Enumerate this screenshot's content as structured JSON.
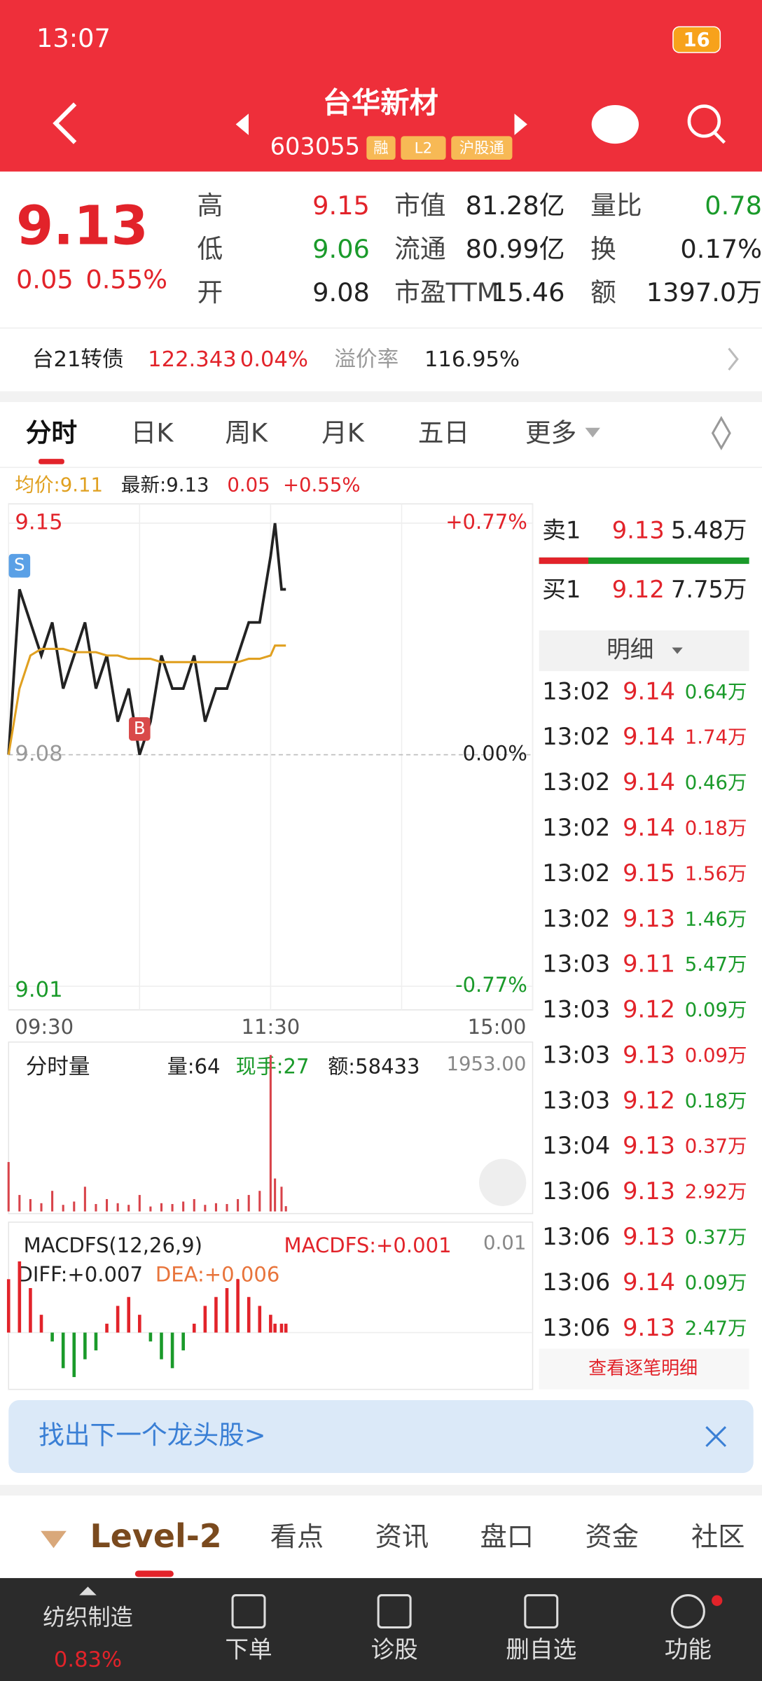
{
  "status_bar": {
    "time": "13:07",
    "battery": "16"
  },
  "header": {
    "title": "台华新材",
    "code": "603055",
    "tags": [
      "融",
      "L2",
      "沪股通"
    ]
  },
  "quote": {
    "price": "9.13",
    "change": "0.05",
    "change_pct": "0.55%",
    "stats": [
      [
        {
          "label": "高",
          "value": "9.15"
        },
        {
          "label": "市值",
          "value": "81.28亿"
        },
        {
          "label": "量比",
          "value": "0.78"
        }
      ],
      [
        {
          "label": "低",
          "value": "9.06"
        },
        {
          "label": "流通",
          "value": "80.99亿"
        },
        {
          "label": "换",
          "value": "0.17%"
        }
      ],
      [
        {
          "label": "开",
          "value": "9.08"
        },
        {
          "label": "市盈TTM",
          "value": "15.46"
        },
        {
          "label": "额",
          "value": "1397.0万"
        }
      ]
    ]
  },
  "bond": {
    "name": "台21转债",
    "price": "122.343",
    "pct": "0.04%",
    "premium_label": "溢价率",
    "premium": "116.95%"
  },
  "tabs": [
    "分时",
    "日K",
    "周K",
    "月K",
    "五日",
    "更多"
  ],
  "chart_info": {
    "avg": "均价:9.11",
    "latest": "最新:9.13",
    "change": "0.05",
    "pct": "+0.55%"
  },
  "chart_data": {
    "type": "line",
    "x": [
      0,
      5,
      10,
      15,
      20,
      25,
      30,
      35,
      40,
      45,
      50,
      55,
      60,
      65,
      70,
      75,
      80,
      85,
      90,
      95,
      100,
      105,
      110,
      115,
      120,
      122,
      125,
      127
    ],
    "xlim": [
      0,
      240
    ],
    "xticks": [
      {
        "value": 0,
        "label": "09:30"
      },
      {
        "value": 120,
        "label": "11:30"
      },
      {
        "value": 240,
        "label": "15:00"
      }
    ],
    "ylim": [
      9.01,
      9.15
    ],
    "yticks": [
      9.01,
      9.08,
      9.15
    ],
    "right_labels": [
      "-0.77%",
      "0.00%",
      "+0.77%"
    ],
    "markers": [
      {
        "label": "S",
        "x": 5
      },
      {
        "label": "B",
        "x": 60
      }
    ],
    "series": [
      {
        "name": "price",
        "color": "#222222",
        "values": [
          9.08,
          9.13,
          9.12,
          9.11,
          9.12,
          9.1,
          9.11,
          9.12,
          9.1,
          9.11,
          9.09,
          9.1,
          9.08,
          9.09,
          9.11,
          9.1,
          9.1,
          9.11,
          9.09,
          9.1,
          9.1,
          9.11,
          9.12,
          9.12,
          9.14,
          9.15,
          9.13,
          9.13
        ]
      },
      {
        "name": "avg",
        "color": "#e0a020",
        "values": [
          9.08,
          9.1,
          9.11,
          9.112,
          9.112,
          9.112,
          9.111,
          9.111,
          9.111,
          9.11,
          9.11,
          9.109,
          9.109,
          9.109,
          9.108,
          9.108,
          9.108,
          9.108,
          9.108,
          9.108,
          9.108,
          9.108,
          9.109,
          9.109,
          9.11,
          9.113,
          9.113,
          9.113
        ]
      }
    ]
  },
  "volume": {
    "title": "分时量",
    "vol": "量:64",
    "hand": "现手:27",
    "amount": "额:58433",
    "max_label": "1953.00",
    "ylim": [
      0,
      1953
    ],
    "color": "#d8434a",
    "values": [
      600,
      200,
      150,
      100,
      250,
      80,
      120,
      300,
      90,
      150,
      100,
      80,
      200,
      60,
      100,
      90,
      120,
      150,
      80,
      100,
      90,
      150,
      200,
      250,
      1900,
      400,
      300,
      64
    ]
  },
  "macd": {
    "title": "MACDFS(12,26,9)",
    "macdfs": "MACDFS:+0.001",
    "diff": "DIFF:+0.007",
    "dea": "DEA:+0.006",
    "max_label": "0.01",
    "ylim": [
      -0.01,
      0.01
    ],
    "values": [
      0.006,
      0.008,
      0.005,
      0.002,
      -0.001,
      -0.004,
      -0.005,
      -0.003,
      -0.002,
      0.001,
      0.003,
      0.004,
      0.002,
      -0.001,
      -0.003,
      -0.004,
      -0.002,
      0.001,
      0.003,
      0.004,
      0.005,
      0.006,
      0.004,
      0.003,
      0.002,
      0.001,
      0.001,
      0.001
    ]
  },
  "order_book": {
    "sell": {
      "label": "卖1",
      "price": "9.13",
      "volume": "5.48万"
    },
    "buy": {
      "label": "买1",
      "price": "9.12",
      "volume": "7.75万"
    },
    "detail_title": "明细",
    "more": "查看逐笔明细",
    "rows": [
      {
        "time": "13:02",
        "price": "9.14",
        "volume": "0.64万",
        "color": "#1a9a2a"
      },
      {
        "time": "13:02",
        "price": "9.14",
        "volume": "1.74万",
        "color": "#e2232a"
      },
      {
        "time": "13:02",
        "price": "9.14",
        "volume": "0.46万",
        "color": "#1a9a2a"
      },
      {
        "time": "13:02",
        "price": "9.14",
        "volume": "0.18万",
        "color": "#e2232a"
      },
      {
        "time": "13:02",
        "price": "9.15",
        "volume": "1.56万",
        "color": "#e2232a"
      },
      {
        "time": "13:02",
        "price": "9.13",
        "volume": "1.46万",
        "color": "#1a9a2a"
      },
      {
        "time": "13:03",
        "price": "9.11",
        "volume": "5.47万",
        "color": "#1a9a2a"
      },
      {
        "time": "13:03",
        "price": "9.12",
        "volume": "0.09万",
        "color": "#1a9a2a"
      },
      {
        "time": "13:03",
        "price": "9.13",
        "volume": "0.09万",
        "color": "#e2232a"
      },
      {
        "time": "13:03",
        "price": "9.12",
        "volume": "0.18万",
        "color": "#1a9a2a"
      },
      {
        "time": "13:04",
        "price": "9.13",
        "volume": "0.37万",
        "color": "#e2232a"
      },
      {
        "time": "13:06",
        "price": "9.13",
        "volume": "2.92万",
        "color": "#e2232a"
      },
      {
        "time": "13:06",
        "price": "9.13",
        "volume": "0.37万",
        "color": "#1a9a2a"
      },
      {
        "time": "13:06",
        "price": "9.14",
        "volume": "0.09万",
        "color": "#1a9a2a"
      },
      {
        "time": "13:06",
        "price": "9.13",
        "volume": "2.47万",
        "color": "#1a9a2a"
      }
    ]
  },
  "banner": {
    "text": "找出下一个龙头股>"
  },
  "bottom_tabs": [
    "Level-2",
    "看点",
    "资讯",
    "盘口",
    "资金",
    "社区"
  ],
  "bottom_nav": {
    "sector": "纺织制造",
    "sector_pct": "0.83%",
    "items": [
      "下单",
      "诊股",
      "删自选",
      "功能"
    ]
  }
}
